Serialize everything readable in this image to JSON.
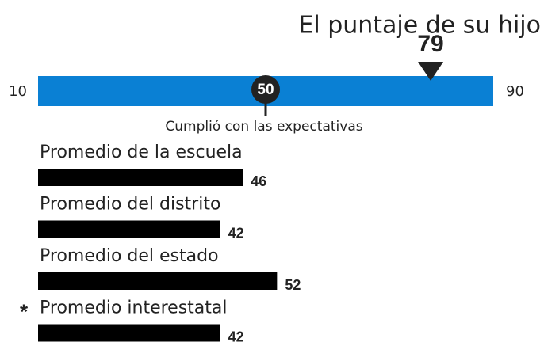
{
  "chart_data": {
    "type": "bar",
    "title": "El puntaje de su hijo",
    "score": 79,
    "benchmark": 50,
    "benchmark_label": "Cumplió con las expectativas",
    "xlim": [
      10,
      90
    ],
    "xticks": [
      10,
      90
    ],
    "scale_color": "#0a80d4",
    "marker_color": "#222222",
    "bar_color": "#000000",
    "series": [
      {
        "name": "Promedio de la escuela",
        "value": 46
      },
      {
        "name": "Promedio del distrito",
        "value": 42
      },
      {
        "name": "Promedio del estado",
        "value": 52
      },
      {
        "name": "Promedio interestatal",
        "value": 42,
        "marker": "*"
      }
    ]
  }
}
